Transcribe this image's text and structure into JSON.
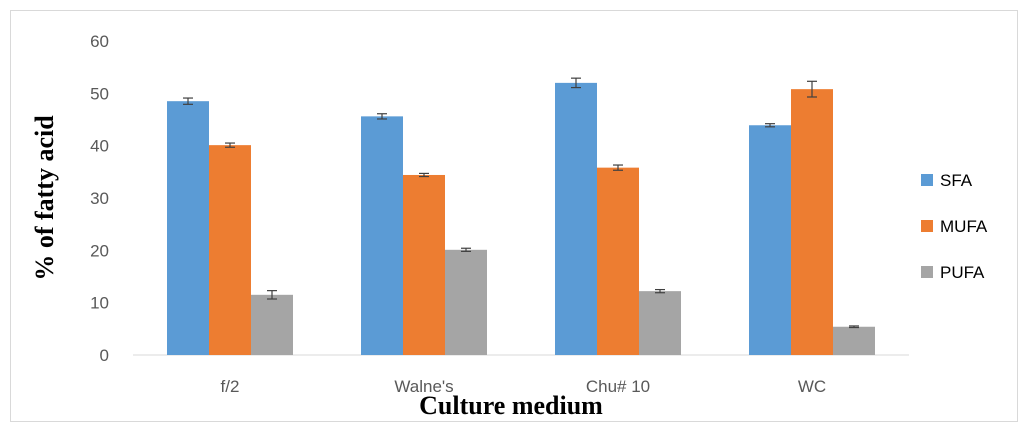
{
  "chart_data": {
    "type": "bar",
    "title": "",
    "xlabel": "Culture medium",
    "ylabel": "% of fatty acid",
    "ylim": [
      0,
      60
    ],
    "yticks": [
      0,
      10,
      20,
      30,
      40,
      50,
      60
    ],
    "grid": false,
    "legend_position": "right",
    "categories": [
      "f/2",
      "Walne's",
      "Chu# 10",
      "WC"
    ],
    "series": [
      {
        "name": "SFA",
        "color": "#5b9bd5",
        "values": [
          48.5,
          45.6,
          52.0,
          43.9
        ],
        "errors": [
          0.6,
          0.5,
          0.9,
          0.3
        ]
      },
      {
        "name": "MUFA",
        "color": "#ed7d31",
        "values": [
          40.1,
          34.4,
          35.8,
          50.8
        ],
        "errors": [
          0.4,
          0.3,
          0.5,
          1.5
        ]
      },
      {
        "name": "PUFA",
        "color": "#a5a5a5",
        "values": [
          11.5,
          20.1,
          12.2,
          5.4
        ],
        "errors": [
          0.8,
          0.3,
          0.3,
          0.15
        ]
      }
    ]
  }
}
